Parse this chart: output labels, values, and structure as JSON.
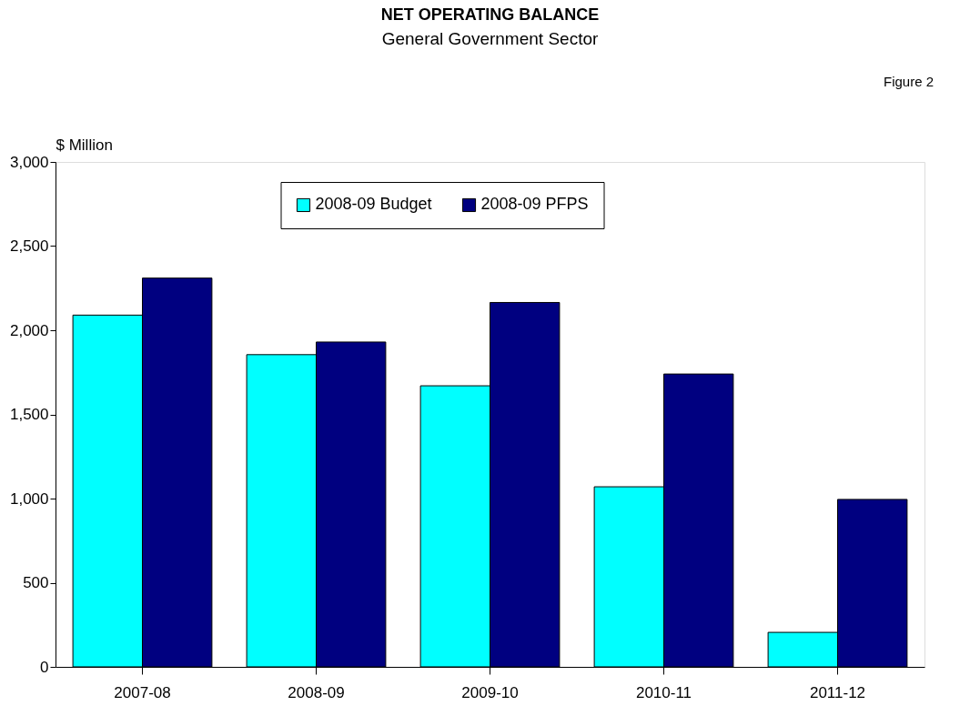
{
  "chart_data": {
    "type": "bar",
    "title": "NET OPERATING BALANCE",
    "subtitle": "General Government Sector",
    "ylabel": "$ Million",
    "annotations": [
      "Figure 2"
    ],
    "categories": [
      "2007-08",
      "2008-09",
      "2009-10",
      "2010-11",
      "2011-12"
    ],
    "series": [
      {
        "name": "2008-09 Budget",
        "color": "#00ffff",
        "values": [
          2090,
          1855,
          1670,
          1070,
          205
        ]
      },
      {
        "name": "2008-09 PFPS",
        "color": "#000080",
        "values": [
          2310,
          1930,
          2165,
          1740,
          995
        ]
      }
    ],
    "ylim": [
      0,
      3000
    ],
    "yticks": [
      0,
      500,
      {
        "value": 1000,
        "label": "1,000"
      },
      {
        "value": 1500,
        "label": "1,500"
      },
      {
        "value": 2000,
        "label": "2,000"
      },
      {
        "value": 2500,
        "label": "2,500"
      },
      {
        "value": 3000,
        "label": "3,000"
      }
    ],
    "grid": false,
    "legend": "top"
  }
}
